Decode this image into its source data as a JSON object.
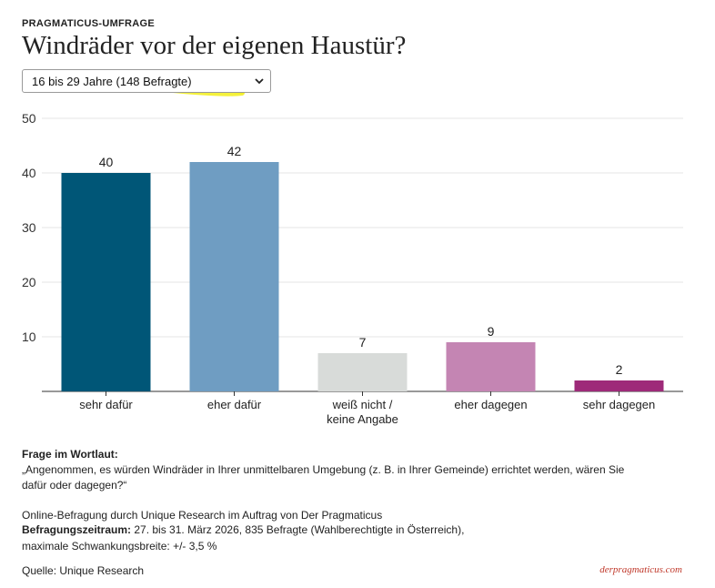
{
  "header": {
    "eyebrow": "PRAGMATICUS-UMFRAGE",
    "title": "Windräder vor der eigenen Haustür?"
  },
  "filter": {
    "selected": "16 bis 29 Jahre (148 Befragte)",
    "highlight_color": "#f2ef1a"
  },
  "chart_data": {
    "type": "bar",
    "categories": [
      "sehr dafür",
      "eher dafür",
      "weiß nicht /\nkeine Angabe",
      "eher dagegen",
      "sehr dagegen"
    ],
    "values": [
      40,
      42,
      7,
      9,
      2
    ],
    "colors": [
      "#005677",
      "#6f9dc2",
      "#d8dbd9",
      "#c485b3",
      "#9e2a79"
    ],
    "ylim": [
      0,
      50
    ],
    "yticks": [
      10,
      20,
      30,
      40,
      50
    ],
    "grid": true,
    "data_labels": true
  },
  "notes": {
    "question_title": "Frage im Wortlaut:",
    "question_line1": "„Angenommen, es würden Windräder in Ihrer unmittelbaren Umgebung (z. B. in Ihrer Gemeinde) errichtet werden, wären Sie",
    "question_line2": "dafür oder dagegen?“",
    "method": "Online-Befragung durch Unique Research im Auftrag von Der Pragmaticus",
    "period_label": "Befragungszeitraum:",
    "period_text": " 27. bis 31. März 2026, 835 Befragte (Wahlberechtigte in Österreich),",
    "margin": "maximale Schwankungsbreite: +/- 3,5 %",
    "source": "Quelle: Unique Research"
  },
  "brand": "derpragmaticus.com"
}
